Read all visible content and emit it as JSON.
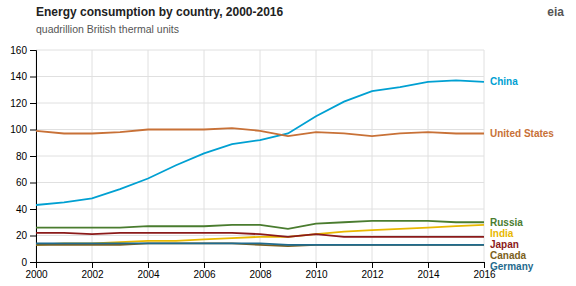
{
  "chart_data": {
    "type": "line",
    "title": "Energy consumption by country, 2000-2016",
    "subtitle": "quadrillion British thermal units",
    "annotations": [
      "eia"
    ],
    "x": [
      2000,
      2001,
      2002,
      2003,
      2004,
      2005,
      2006,
      2007,
      2008,
      2009,
      2010,
      2011,
      2012,
      2013,
      2014,
      2015,
      2016
    ],
    "series": [
      {
        "name": "China",
        "color": "#00a0d2",
        "values": [
          43,
          45,
          48,
          55,
          63,
          73,
          82,
          89,
          92,
          97,
          110,
          121,
          129,
          132,
          136,
          137,
          136
        ]
      },
      {
        "name": "United States",
        "color": "#c87137",
        "values": [
          99,
          97,
          97,
          98,
          100,
          100,
          100,
          101,
          99,
          95,
          98,
          97,
          95,
          97,
          98,
          97,
          97
        ]
      },
      {
        "name": "Russia",
        "color": "#4a7c2f",
        "values": [
          26,
          26,
          26,
          26,
          27,
          27,
          27,
          28,
          28,
          25,
          29,
          30,
          31,
          31,
          31,
          30,
          30
        ]
      },
      {
        "name": "India",
        "color": "#e8b800",
        "values": [
          13,
          14,
          14,
          15,
          16,
          16,
          17,
          18,
          19,
          19,
          21,
          23,
          24,
          25,
          26,
          27,
          28
        ]
      },
      {
        "name": "Japan",
        "color": "#8b1a1a",
        "values": [
          22,
          22,
          21,
          22,
          22,
          22,
          22,
          22,
          21,
          19,
          21,
          19,
          19,
          19,
          19,
          19,
          19
        ]
      },
      {
        "name": "Canada",
        "color": "#7b6020",
        "values": [
          13,
          13,
          13,
          13,
          14,
          14,
          14,
          14,
          13,
          12,
          13,
          13,
          13,
          13,
          13,
          13,
          13
        ]
      },
      {
        "name": "Germany",
        "color": "#1f6b8e",
        "values": [
          14,
          14,
          14,
          14,
          14,
          14,
          14,
          14,
          14,
          13,
          13,
          13,
          13,
          13,
          13,
          13,
          13
        ]
      }
    ],
    "xlim": [
      2000,
      2016
    ],
    "ylim": [
      0,
      160
    ],
    "xticks": [
      2000,
      2002,
      2004,
      2006,
      2008,
      2010,
      2012,
      2014,
      2016
    ],
    "yticks": [
      0,
      20,
      40,
      60,
      80,
      100,
      120,
      140,
      160
    ],
    "grid": true
  }
}
